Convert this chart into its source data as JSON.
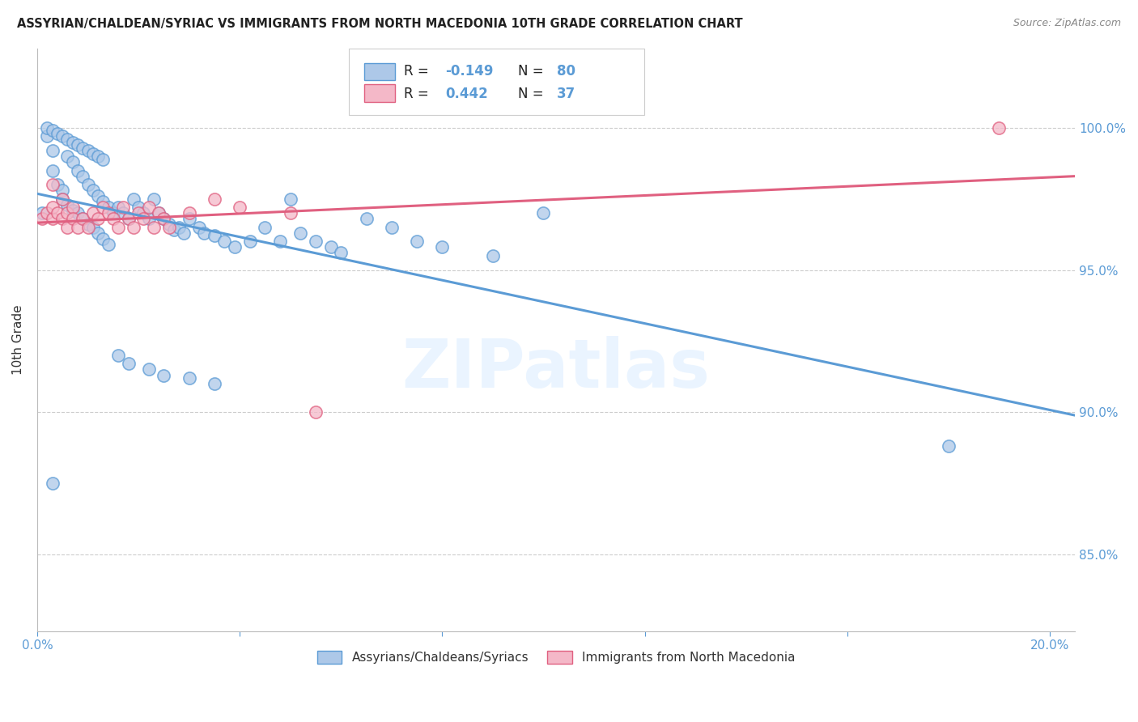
{
  "title": "ASSYRIAN/CHALDEAN/SYRIAC VS IMMIGRANTS FROM NORTH MACEDONIA 10TH GRADE CORRELATION CHART",
  "source": "Source: ZipAtlas.com",
  "ylabel": "10th Grade",
  "ytick_values": [
    0.85,
    0.9,
    0.95,
    1.0
  ],
  "xlim": [
    0.0,
    0.205
  ],
  "ylim": [
    0.823,
    1.028
  ],
  "legend_r1": "R = ",
  "legend_v1": "-0.149",
  "legend_n1": "N = ",
  "legend_nv1": "80",
  "legend_r2": "R = ",
  "legend_v2": "0.442",
  "legend_n2": "N = ",
  "legend_nv2": "37",
  "legend_label1": "Assyrians/Chaldeans/Syriacs",
  "legend_label2": "Immigrants from North Macedonia",
  "watermark": "ZIPatlas",
  "line_blue_color": "#5b9bd5",
  "line_pink_color": "#e06080",
  "scatter_blue_color": "#adc8e8",
  "scatter_pink_color": "#f4b8c8",
  "grid_color": "#cccccc",
  "axis_tick_color": "#5b9bd5",
  "blue_x": [
    0.001,
    0.002,
    0.003,
    0.003,
    0.004,
    0.005,
    0.005,
    0.006,
    0.006,
    0.007,
    0.007,
    0.008,
    0.008,
    0.009,
    0.009,
    0.01,
    0.01,
    0.011,
    0.011,
    0.012,
    0.012,
    0.013,
    0.013,
    0.014,
    0.014,
    0.015,
    0.016,
    0.017,
    0.018,
    0.019,
    0.02,
    0.021,
    0.022,
    0.023,
    0.024,
    0.025,
    0.026,
    0.027,
    0.028,
    0.029,
    0.03,
    0.032,
    0.033,
    0.035,
    0.037,
    0.039,
    0.042,
    0.045,
    0.048,
    0.05,
    0.052,
    0.055,
    0.058,
    0.06,
    0.065,
    0.07,
    0.075,
    0.08,
    0.09,
    0.1,
    0.002,
    0.003,
    0.004,
    0.005,
    0.006,
    0.007,
    0.008,
    0.009,
    0.01,
    0.011,
    0.012,
    0.013,
    0.016,
    0.018,
    0.022,
    0.025,
    0.03,
    0.035,
    0.18,
    0.003
  ],
  "blue_y": [
    0.97,
    0.997,
    0.992,
    0.985,
    0.98,
    0.978,
    0.975,
    0.99,
    0.973,
    0.988,
    0.971,
    0.985,
    0.97,
    0.983,
    0.968,
    0.98,
    0.966,
    0.978,
    0.965,
    0.976,
    0.963,
    0.974,
    0.961,
    0.972,
    0.959,
    0.97,
    0.972,
    0.97,
    0.968,
    0.975,
    0.972,
    0.97,
    0.968,
    0.975,
    0.97,
    0.968,
    0.966,
    0.964,
    0.965,
    0.963,
    0.968,
    0.965,
    0.963,
    0.962,
    0.96,
    0.958,
    0.96,
    0.965,
    0.96,
    0.975,
    0.963,
    0.96,
    0.958,
    0.956,
    0.968,
    0.965,
    0.96,
    0.958,
    0.955,
    0.97,
    1.0,
    0.999,
    0.998,
    0.997,
    0.996,
    0.995,
    0.994,
    0.993,
    0.992,
    0.991,
    0.99,
    0.989,
    0.92,
    0.917,
    0.915,
    0.913,
    0.912,
    0.91,
    0.888,
    0.875
  ],
  "pink_x": [
    0.001,
    0.002,
    0.003,
    0.003,
    0.004,
    0.005,
    0.005,
    0.006,
    0.006,
    0.007,
    0.007,
    0.008,
    0.009,
    0.01,
    0.011,
    0.012,
    0.013,
    0.014,
    0.015,
    0.016,
    0.017,
    0.018,
    0.019,
    0.02,
    0.021,
    0.022,
    0.023,
    0.024,
    0.025,
    0.026,
    0.03,
    0.035,
    0.04,
    0.05,
    0.055,
    0.19,
    0.003
  ],
  "pink_y": [
    0.968,
    0.97,
    0.968,
    0.972,
    0.97,
    0.968,
    0.975,
    0.97,
    0.965,
    0.972,
    0.968,
    0.965,
    0.968,
    0.965,
    0.97,
    0.968,
    0.972,
    0.97,
    0.968,
    0.965,
    0.972,
    0.968,
    0.965,
    0.97,
    0.968,
    0.972,
    0.965,
    0.97,
    0.968,
    0.965,
    0.97,
    0.975,
    0.972,
    0.97,
    0.9,
    1.0,
    0.98
  ]
}
